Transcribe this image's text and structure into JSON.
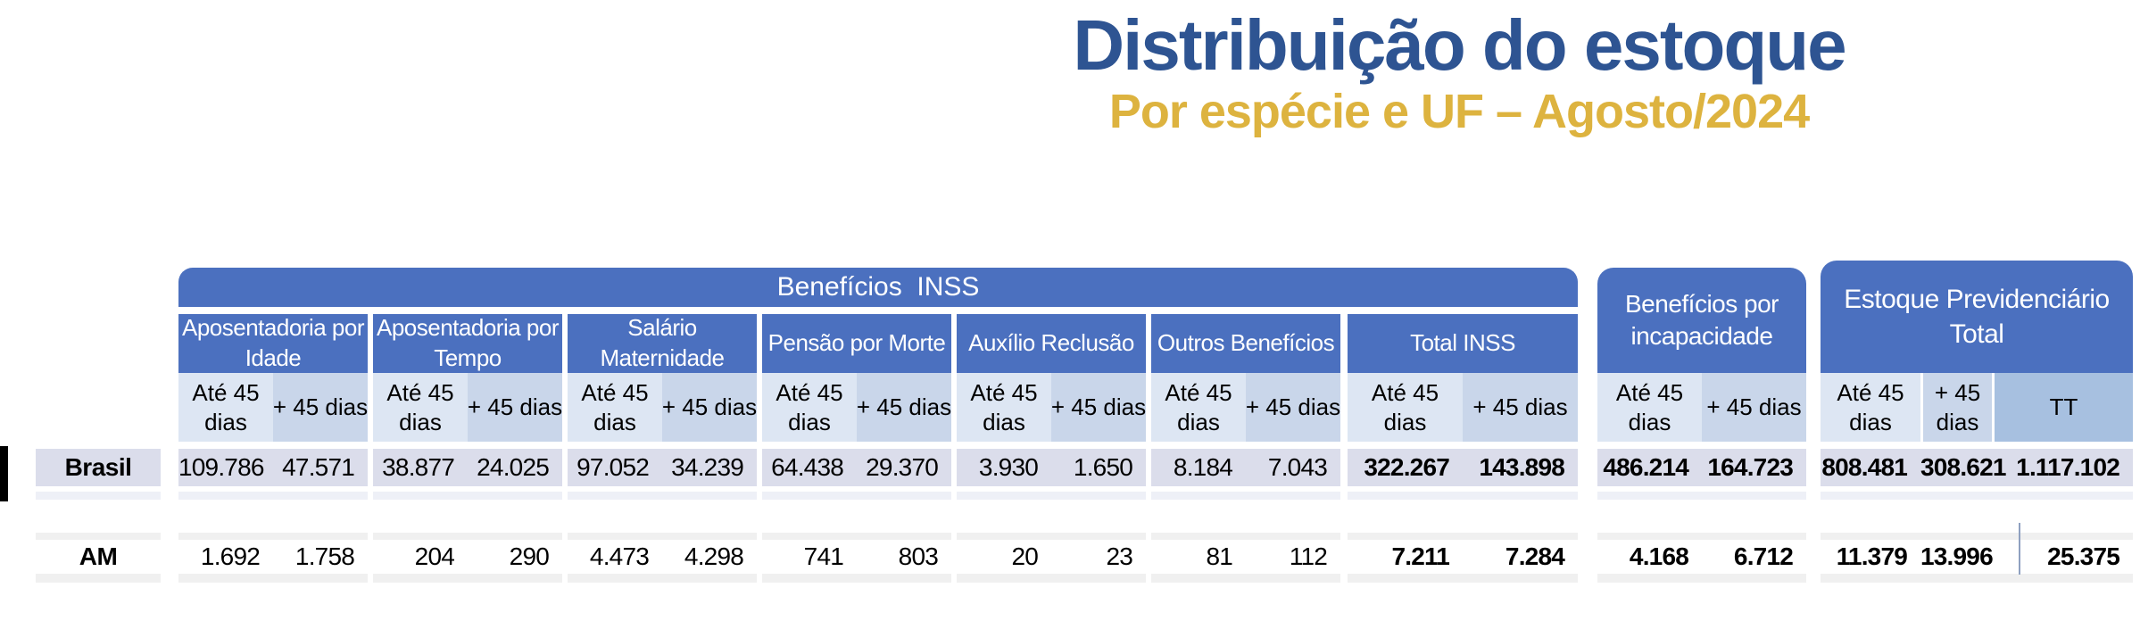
{
  "title": {
    "main": "Distribuição do estoque",
    "subtitle": "Por espécie e UF – Agosto/2024"
  },
  "colors": {
    "blue": "#4b70bf",
    "light": "#dde6f3",
    "mid": "#c9d6ea",
    "tt": "#a7c0e0",
    "lavender": "#dbddeb",
    "faint": "#eef0f7",
    "gray": "#f0f0f0",
    "navy": "#2e5492",
    "gold": "#ddb33f"
  },
  "table": {
    "banner": "Benefícios  INSS",
    "col_headers": {
      "ate45": "Até 45 dias",
      "mais45": "+ 45 dias",
      "tt": "TT"
    },
    "groups": [
      {
        "label": "Aposentadoria por Idade"
      },
      {
        "label": "Aposentadoria por Tempo"
      },
      {
        "label": "Salário Maternidade"
      },
      {
        "label": "Pensão por Morte"
      },
      {
        "label": "Auxílio Reclusão"
      },
      {
        "label": "Outros Benefícios"
      },
      {
        "label": "Total INSS"
      },
      {
        "label": "Benefícios por incapacidade"
      },
      {
        "label": "Estoque Previdenciário Total"
      }
    ],
    "rows": [
      {
        "label": "Brasil",
        "values": [
          "109.786",
          "47.571",
          "38.877",
          "24.025",
          "97.052",
          "34.239",
          "64.438",
          "29.370",
          "3.930",
          "1.650",
          "8.184",
          "7.043",
          "322.267",
          "143.898",
          "486.214",
          "164.723",
          "808.481",
          "308.621",
          "1.117.102"
        ]
      },
      {
        "label": "AM",
        "values": [
          "1.692",
          "1.758",
          "204",
          "290",
          "4.473",
          "4.298",
          "741",
          "803",
          "20",
          "23",
          "81",
          "112",
          "7.211",
          "7.284",
          "4.168",
          "6.712",
          "11.379",
          "13.996",
          "25.375"
        ]
      }
    ]
  }
}
